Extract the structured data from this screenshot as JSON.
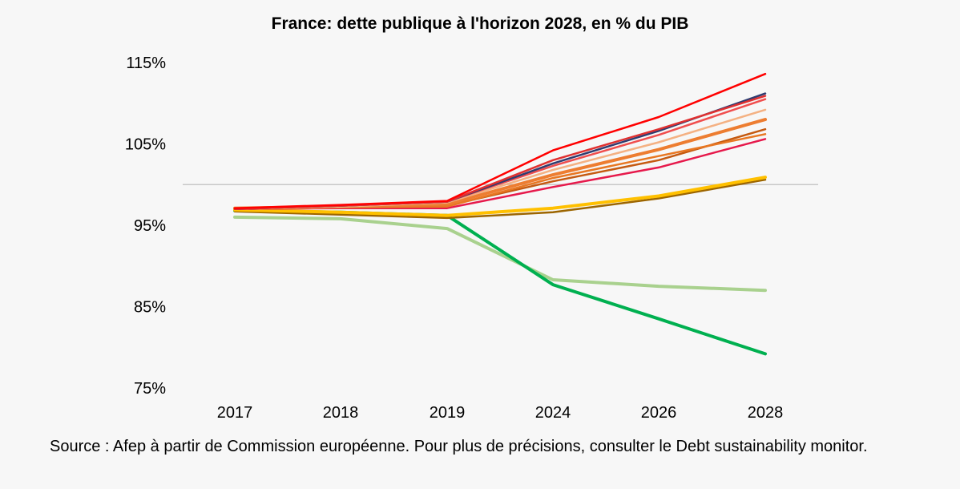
{
  "chart_data": {
    "type": "line",
    "title": "France: dette publique à l'horizon 2028, en % du PIB",
    "xlabel": "",
    "ylabel": "",
    "categories": [
      "2017",
      "2018",
      "2019",
      "2024",
      "2026",
      "2028"
    ],
    "y_ticks": [
      "75%",
      "85%",
      "95%",
      "105%",
      "115%"
    ],
    "ylim": [
      75,
      115
    ],
    "reference_line": 100,
    "grid": false,
    "legend": "none",
    "series": [
      {
        "color": "#a9d18e",
        "values": [
          96.0,
          95.8,
          94.6,
          88.3,
          87.5,
          87.0
        ]
      },
      {
        "color": "#00b050",
        "values": [
          96.8,
          96.6,
          96.2,
          87.7,
          83.5,
          79.2
        ]
      },
      {
        "color": "#9c6500",
        "values": [
          96.7,
          96.3,
          95.9,
          96.6,
          98.3,
          100.6
        ]
      },
      {
        "color": "#ffc000",
        "values": [
          96.9,
          96.6,
          96.2,
          97.1,
          98.6,
          100.9
        ]
      },
      {
        "color": "#e6194b",
        "values": [
          97.0,
          97.1,
          97.1,
          99.7,
          102.1,
          105.6
        ]
      },
      {
        "color": "#c55a11",
        "values": [
          97.1,
          97.3,
          97.4,
          100.4,
          103.0,
          106.8
        ]
      },
      {
        "color": "#e87722",
        "values": [
          97.0,
          97.2,
          97.3,
          100.8,
          103.5,
          106.2
        ]
      },
      {
        "color": "#ed7d31",
        "values": [
          97.1,
          97.3,
          97.6,
          101.2,
          104.3,
          108.0
        ]
      },
      {
        "color": "#f4b183",
        "values": [
          97.0,
          97.3,
          97.8,
          101.8,
          105.2,
          109.2
        ]
      },
      {
        "color": "#f04e4e",
        "values": [
          97.0,
          97.4,
          97.9,
          102.3,
          106.1,
          110.5
        ]
      },
      {
        "color": "#2f3c70",
        "values": [
          97.0,
          97.4,
          97.9,
          102.6,
          106.6,
          111.2
        ]
      },
      {
        "color": "#e03030",
        "values": [
          97.0,
          97.4,
          97.9,
          103.0,
          106.8,
          110.9
        ]
      },
      {
        "color": "#ff0000",
        "values": [
          97.1,
          97.5,
          98.0,
          104.2,
          108.3,
          113.6
        ]
      }
    ]
  },
  "source": "Source : Afep à partir de Commission européenne. Pour plus de précisions, consulter le Debt sustainability monitor."
}
